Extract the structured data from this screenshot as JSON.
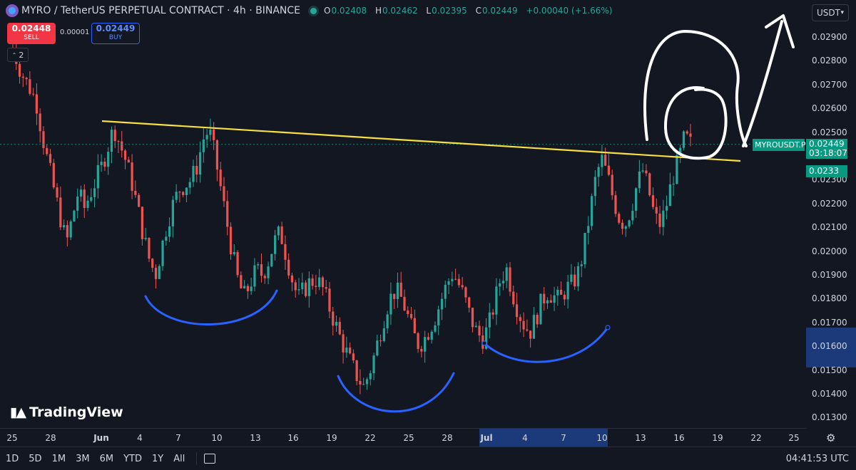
{
  "header": {
    "title": "MYRO / TetherUS PERPETUAL CONTRACT · 4h · BINANCE",
    "ohlc": [
      {
        "label": "O",
        "value": "0.02408"
      },
      {
        "label": "H",
        "value": "0.02462"
      },
      {
        "label": "L",
        "value": "0.02395"
      },
      {
        "label": "C",
        "value": "0.02449"
      }
    ],
    "change": "+0.00040 (+1.66%)"
  },
  "trade": {
    "sell_price": "0.02448",
    "sell_label": "SELL",
    "spread": "0.00001",
    "buy_price": "0.02449",
    "buy_label": "BUY",
    "indicator_count": "2"
  },
  "currency": {
    "value": "USDT"
  },
  "labels": {
    "symbol": "MYROUSDT.P",
    "last_price": "0.02449",
    "countdown": "03:18:07",
    "marker_price": "0.0233"
  },
  "bottom": {
    "ranges": [
      "1D",
      "5D",
      "1M",
      "3M",
      "6M",
      "YTD",
      "1Y",
      "All"
    ],
    "clock": "04:41:53 UTC"
  },
  "watermark": {
    "text": "TradingView"
  },
  "colors": {
    "up": "#26a69a",
    "down": "#ef5350",
    "trendline": "#f7e041",
    "annotation_blue": "#2962ff",
    "highlight": "#1c3a7a"
  },
  "chart_data": {
    "type": "candlestick",
    "ylim": [
      0.0125,
      0.0298
    ],
    "y_ticks": [
      "0.02900",
      "0.02800",
      "0.02700",
      "0.02600",
      "0.02500",
      "0.02400",
      "0.02300",
      "0.02200",
      "0.02100",
      "0.02000",
      "0.01900",
      "0.01800",
      "0.01700",
      "0.01600",
      "0.01500",
      "0.01400",
      "0.01300"
    ],
    "x_ticks": [
      "25",
      "28",
      "Jun",
      "4",
      "7",
      "10",
      "13",
      "16",
      "19",
      "22",
      "25",
      "28",
      "Jul",
      "4",
      "7",
      "10",
      "13",
      "16",
      "19",
      "22",
      "25"
    ],
    "close_path": [
      0.0285,
      0.0278,
      0.0272,
      0.0268,
      0.0262,
      0.0248,
      0.0236,
      0.0225,
      0.0214,
      0.0203,
      0.0214,
      0.0225,
      0.0218,
      0.0224,
      0.023,
      0.0236,
      0.0244,
      0.0252,
      0.0245,
      0.0238,
      0.0229,
      0.0218,
      0.0206,
      0.0196,
      0.019,
      0.0201,
      0.0212,
      0.022,
      0.0226,
      0.0228,
      0.023,
      0.0236,
      0.0247,
      0.0251,
      0.024,
      0.0226,
      0.0212,
      0.0198,
      0.0186,
      0.0181,
      0.0187,
      0.0192,
      0.019,
      0.0196,
      0.0204,
      0.0208,
      0.0198,
      0.0188,
      0.018,
      0.0184,
      0.0187,
      0.0188,
      0.0185,
      0.0178,
      0.0171,
      0.0164,
      0.0158,
      0.0152,
      0.0147,
      0.0143,
      0.0149,
      0.0158,
      0.0168,
      0.0177,
      0.0183,
      0.0182,
      0.0176,
      0.0168,
      0.0161,
      0.0162,
      0.0167,
      0.0172,
      0.0179,
      0.0186,
      0.0191,
      0.0186,
      0.018,
      0.0172,
      0.0166,
      0.0163,
      0.0168,
      0.0178,
      0.0188,
      0.0193,
      0.0183,
      0.0175,
      0.0169,
      0.0166,
      0.0172,
      0.0179,
      0.0183,
      0.0181,
      0.0179,
      0.0184,
      0.0186,
      0.019,
      0.02,
      0.0215,
      0.023,
      0.0239,
      0.0232,
      0.0222,
      0.0214,
      0.0211,
      0.0218,
      0.0228,
      0.0234,
      0.0225,
      0.0214,
      0.0211,
      0.022,
      0.0231,
      0.0238,
      0.0248,
      0.0245
    ],
    "last_price": 0.02449,
    "marker_price": 0.0233
  }
}
